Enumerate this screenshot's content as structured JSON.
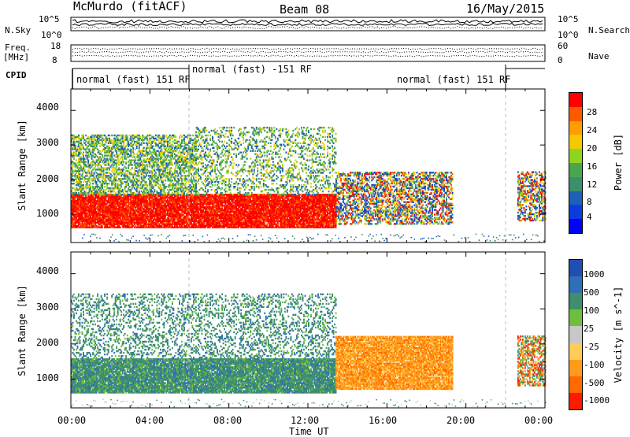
{
  "header": {
    "station": "McMurdo (fitACF)",
    "beam": "Beam 08",
    "date": "16/May/2015"
  },
  "top_panel": {
    "nsky_label": "N.Sky",
    "nsearch_label": "N.Search",
    "nsky_ticks": [
      "10^5",
      "10^0"
    ],
    "nsearch_ticks": [
      "10^5",
      "10^0"
    ],
    "freq_label": "Freq.",
    "freq_unit": "[MHz]",
    "freq_ticks": [
      "18",
      "8"
    ],
    "nave_label": "Nave",
    "nave_ticks": [
      "60",
      "0"
    ],
    "cpid_label": "CPID",
    "cpid_modes": [
      {
        "label": "normal (fast) 151 RF",
        "span_hours": [
          0,
          6
        ]
      },
      {
        "label": "normal (fast) -151 RF",
        "span_hours": [
          6,
          22
        ]
      },
      {
        "label": "normal (fast) 151 RF",
        "span_hours": [
          22,
          24
        ]
      }
    ]
  },
  "axes": {
    "xlabel": "Time UT",
    "ylabel": "Slant Range [km]",
    "x_ticks": [
      "00:00",
      "04:00",
      "08:00",
      "12:00",
      "16:00",
      "20:00",
      "00:00"
    ],
    "y_ticks": [
      "1000",
      "2000",
      "3000",
      "4000"
    ]
  },
  "chart_data": [
    {
      "type": "heatmap",
      "name": "power",
      "xlabel": "Time UT",
      "ylabel": "Slant Range [km]",
      "xlim": [
        0,
        24
      ],
      "ylim": [
        180,
        4620
      ],
      "colorbar_label": "Power [dB]",
      "colorbar_ticks": [
        "28",
        "24",
        "20",
        "16",
        "12",
        "8",
        "4"
      ],
      "colorbar_colors": [
        "#ff0000",
        "#ff5a00",
        "#ff9c00",
        "#f7c800",
        "#8ed61e",
        "#4aa64e",
        "#3b8f6a",
        "#1e5fb8",
        "#0a3de0",
        "#0000ff"
      ],
      "regions": [
        {
          "t": [
            0,
            13.4
          ],
          "r": [
            600,
            1550
          ],
          "level": "high"
        },
        {
          "t": [
            0,
            6.3
          ],
          "r": [
            1550,
            3300
          ],
          "level": "mixed"
        },
        {
          "t": [
            6.3,
            13.4
          ],
          "r": [
            1550,
            3500
          ],
          "level": "sparse"
        },
        {
          "t": [
            13.4,
            19.3
          ],
          "r": [
            700,
            2200
          ],
          "level": "medium"
        },
        {
          "t": [
            22.6,
            24
          ],
          "r": [
            800,
            2200
          ],
          "level": "medium"
        }
      ]
    },
    {
      "type": "heatmap",
      "name": "velocity",
      "xlabel": "Time UT",
      "ylabel": "Slant Range [km]",
      "xlim": [
        0,
        24
      ],
      "ylim": [
        180,
        4620
      ],
      "colorbar_label": "Velocity [m s^-1]",
      "colorbar_ticks": [
        "1000",
        "500",
        "100",
        "25",
        "-25",
        "-100",
        "-500",
        "-1000"
      ],
      "colorbar_colors": [
        "#1f4fb0",
        "#2f6fb8",
        "#3f8f6f",
        "#6fbf3f",
        "#c8c8c8",
        "#ffcc55",
        "#ff9a1a",
        "#ff6a00",
        "#ff1a00"
      ],
      "regions": [
        {
          "t": [
            0,
            13.4
          ],
          "r": [
            600,
            1550
          ],
          "level": "positive"
        },
        {
          "t": [
            0,
            13.4
          ],
          "r": [
            1550,
            3400
          ],
          "level": "positive-sparse"
        },
        {
          "t": [
            13.4,
            19.3
          ],
          "r": [
            700,
            2200
          ],
          "level": "negative"
        },
        {
          "t": [
            22.6,
            24
          ],
          "r": [
            800,
            2200
          ],
          "level": "mixed"
        }
      ]
    }
  ]
}
